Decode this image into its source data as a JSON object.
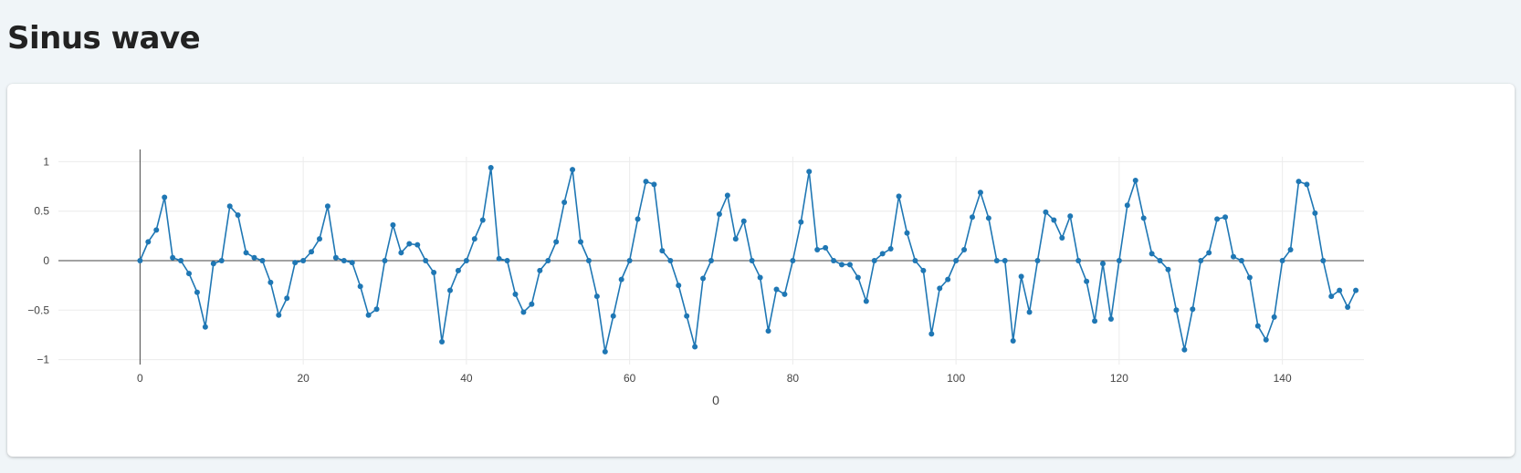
{
  "page": {
    "title": "Sinus wave"
  },
  "colors": {
    "series": "#1f77b4",
    "grid": "#ececec",
    "axis": "#444444"
  },
  "chart_data": {
    "type": "line",
    "mode": "lines+markers",
    "title": "",
    "xlabel": "0",
    "ylabel": "",
    "xlim": [
      -10,
      150
    ],
    "ylim": [
      -1.05,
      1.05
    ],
    "xticks": [
      0,
      20,
      40,
      60,
      80,
      100,
      120,
      140
    ],
    "yticks": [
      1,
      0.5,
      0,
      -0.5,
      -1
    ],
    "ytick_labels": [
      "1",
      "0.5",
      "0",
      "−0.5",
      "−1"
    ],
    "grid": true,
    "legend": "none",
    "x_start": 0,
    "x_step": 1,
    "series": [
      {
        "values": [
          0,
          0.19,
          0.31,
          0.64,
          0.03,
          0,
          -0.13,
          -0.32,
          -0.67,
          -0.03,
          0,
          0.55,
          0.46,
          0.08,
          0.03,
          0,
          -0.22,
          -0.55,
          -0.38,
          -0.02,
          0,
          0.09,
          0.22,
          0.55,
          0.03,
          0,
          -0.02,
          -0.26,
          -0.55,
          -0.49,
          0,
          0.36,
          0.08,
          0.17,
          0.16,
          0,
          -0.12,
          -0.82,
          -0.3,
          -0.1,
          0,
          0.22,
          0.41,
          0.94,
          0.02,
          0,
          -0.34,
          -0.52,
          -0.44,
          -0.1,
          0,
          0.19,
          0.59,
          0.92,
          0.19,
          0,
          -0.36,
          -0.92,
          -0.56,
          -0.19,
          0,
          0.42,
          0.8,
          0.77,
          0.1,
          0,
          -0.25,
          -0.56,
          -0.87,
          -0.18,
          0,
          0.47,
          0.66,
          0.22,
          0.4,
          0,
          -0.17,
          -0.71,
          -0.29,
          -0.34,
          0,
          0.39,
          0.9,
          0.11,
          0.13,
          0,
          -0.04,
          -0.04,
          -0.17,
          -0.41,
          0,
          0.07,
          0.12,
          0.65,
          0.28,
          0,
          -0.1,
          -0.74,
          -0.28,
          -0.19,
          0,
          0.11,
          0.44,
          0.69,
          0.43,
          0,
          0,
          -0.81,
          -0.16,
          -0.52,
          0,
          0.49,
          0.41,
          0.23,
          0.45,
          0,
          -0.21,
          -0.61,
          -0.03,
          -0.59,
          0,
          0.56,
          0.81,
          0.43,
          0.07,
          0,
          -0.09,
          -0.5,
          -0.9,
          -0.49,
          0,
          0.08,
          0.42,
          0.44,
          0.04,
          0,
          -0.17,
          -0.66,
          -0.8,
          -0.57,
          0,
          0.11,
          0.8,
          0.77,
          0.48,
          0,
          -0.36,
          -0.3,
          -0.47,
          -0.3
        ]
      }
    ]
  }
}
